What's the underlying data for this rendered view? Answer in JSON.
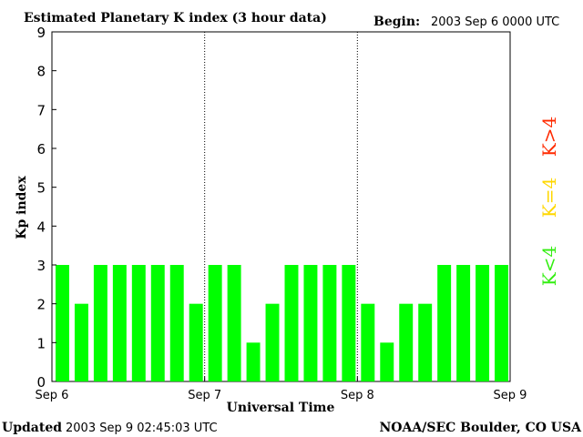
{
  "header": {
    "title": "Estimated Planetary K index (3 hour data)",
    "begin_label": "Begin:",
    "begin_value": "2003 Sep 6 0000 UTC"
  },
  "footer": {
    "updated_label": "Updated",
    "updated_value": "2003 Sep  9 02:45:03 UTC",
    "source": "NOAA/SEC Boulder, CO USA"
  },
  "legend": {
    "k_gt_4": "K>4",
    "k_eq_4": "K=4",
    "k_lt_4": "K<4",
    "colors": {
      "k_gt_4": "#ff2a00",
      "k_eq_4": "#ffd700",
      "k_lt_4": "#33ee11"
    }
  },
  "chart_data": {
    "type": "bar",
    "title": "Estimated Planetary K index (3 hour data)",
    "xlabel": "Universal Time",
    "ylabel": "Kp index",
    "ylim": [
      0,
      9
    ],
    "yticks": [
      "0",
      "1",
      "2",
      "3",
      "4",
      "5",
      "6",
      "7",
      "8",
      "9"
    ],
    "xticks": [
      "Sep 6",
      "Sep 7",
      "Sep 8",
      "Sep 9"
    ],
    "values": [
      3,
      2,
      3,
      3,
      3,
      3,
      3,
      2,
      3,
      3,
      1,
      2,
      3,
      3,
      3,
      3,
      2,
      1,
      2,
      2,
      3,
      3,
      3,
      3
    ],
    "bar_color": "#00ff00",
    "grid": false,
    "day_separators": true
  }
}
